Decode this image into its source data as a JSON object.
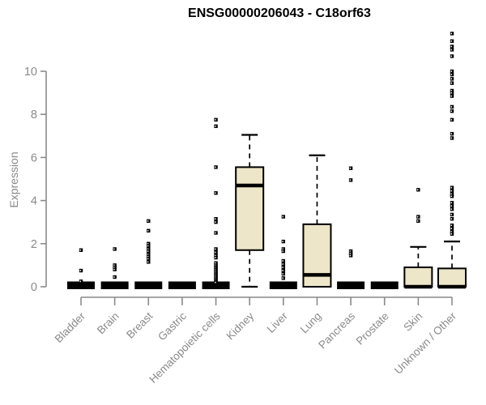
{
  "chart_data": {
    "type": "boxplot",
    "title": "ENSG00000206043 - C18orf63",
    "ylabel": "Expression",
    "xlabel": "",
    "yticks": [
      0,
      2,
      4,
      6,
      8,
      10
    ],
    "ylim": [
      0,
      11.8
    ],
    "grid": false,
    "legend": "none",
    "colors": {
      "box_fill": "#ede6c8",
      "box_stroke": "#000000",
      "axis": "#8a8a8a",
      "title": "#000000",
      "background": "#ffffff"
    },
    "categories": [
      "Bladder",
      "Brain",
      "Breast",
      "Gastric",
      "Hematopoietic cells",
      "Kidney",
      "Liver",
      "Lung",
      "Pancreas",
      "Prostate",
      "Skin",
      "Unknown / Other"
    ],
    "groups": [
      {
        "label": "Bladder",
        "q1": 0,
        "median": 0,
        "q3": 0,
        "whisker_low": 0,
        "whisker_high": 0,
        "outliers": [
          1.7,
          0.75,
          0.25
        ]
      },
      {
        "label": "Brain",
        "q1": 0,
        "median": 0,
        "q3": 0,
        "whisker_low": 0,
        "whisker_high": 0,
        "outliers": [
          1.75,
          1.0,
          0.9,
          0.8,
          0.45
        ]
      },
      {
        "label": "Breast",
        "q1": 0,
        "median": 0,
        "q3": 0,
        "whisker_low": 0,
        "whisker_high": 0,
        "outliers": [
          3.05,
          2.6,
          2.0,
          1.9,
          1.75,
          1.65,
          1.5,
          1.4,
          1.3,
          1.15
        ]
      },
      {
        "label": "Gastric",
        "q1": 0,
        "median": 0,
        "q3": 0,
        "whisker_low": 0,
        "whisker_high": 0,
        "outliers": []
      },
      {
        "label": "Hematopoietic cells",
        "q1": 0,
        "median": 0,
        "q3": 0,
        "whisker_low": 0,
        "whisker_high": 0,
        "outliers": [
          7.75,
          7.45,
          5.55,
          4.35,
          3.15,
          3.0,
          2.5,
          1.75,
          1.6,
          1.45,
          1.35,
          1.1,
          1.0,
          0.92,
          0.85,
          0.78,
          0.7,
          0.62,
          0.55,
          0.48,
          0.4,
          0.33,
          0.26,
          0.2
        ]
      },
      {
        "label": "Kidney",
        "q1": 1.7,
        "median": 4.7,
        "q3": 5.55,
        "whisker_low": 0,
        "whisker_high": 7.05,
        "outliers": []
      },
      {
        "label": "Liver",
        "q1": 0,
        "median": 0,
        "q3": 0,
        "whisker_low": 0,
        "whisker_high": 0,
        "outliers": [
          3.25,
          2.1,
          1.75,
          1.65,
          1.2,
          1.05,
          0.9,
          0.75,
          0.6,
          0.4
        ]
      },
      {
        "label": "Lung",
        "q1": 0,
        "median": 0.55,
        "q3": 2.9,
        "whisker_low": 0,
        "whisker_high": 6.1,
        "outliers": []
      },
      {
        "label": "Pancreas",
        "q1": 0,
        "median": 0,
        "q3": 0,
        "whisker_low": 0,
        "whisker_high": 0,
        "outliers": [
          5.5,
          4.95,
          1.65,
          1.55,
          1.45
        ]
      },
      {
        "label": "Prostate",
        "q1": 0,
        "median": 0,
        "q3": 0,
        "whisker_low": 0,
        "whisker_high": 0,
        "outliers": []
      },
      {
        "label": "Skin",
        "q1": 0,
        "median": 0,
        "q3": 0.9,
        "whisker_low": 0,
        "whisker_high": 1.85,
        "outliers": [
          4.5,
          3.25,
          3.05
        ]
      },
      {
        "label": "Unknown / Other",
        "q1": 0,
        "median": 0,
        "q3": 0.85,
        "whisker_low": 0,
        "whisker_high": 2.1,
        "outliers": [
          11.75,
          11.4,
          11.15,
          11.0,
          10.7,
          10.0,
          9.85,
          9.65,
          9.45,
          9.1,
          9.0,
          8.85,
          8.35,
          8.15,
          7.75,
          7.1,
          6.9,
          4.6,
          4.45,
          4.3,
          4.2,
          3.9,
          3.75,
          3.6,
          3.35,
          3.15,
          2.85,
          2.7,
          2.55,
          2.45
        ]
      }
    ]
  }
}
